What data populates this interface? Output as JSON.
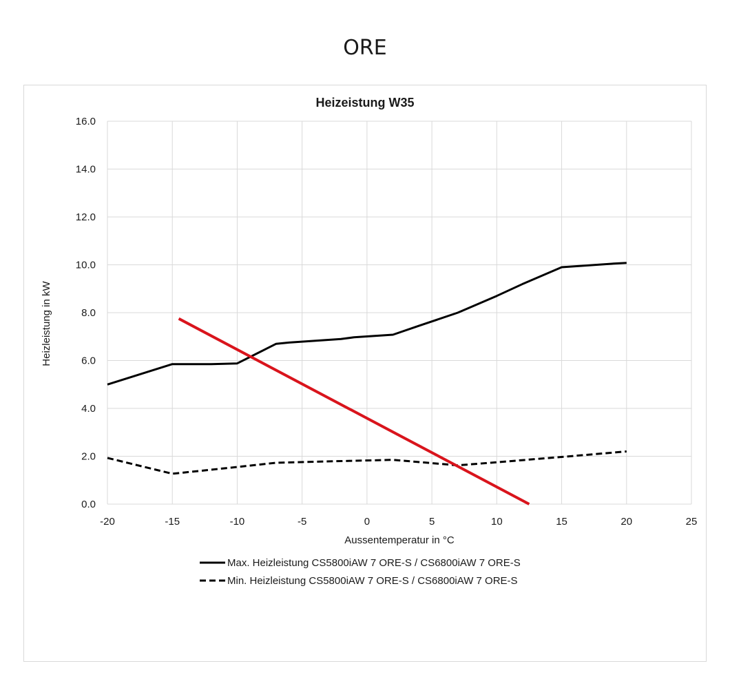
{
  "page_title": "ORE",
  "chart_data": {
    "type": "line",
    "title": "Heizeistung W35",
    "xlabel": "Aussentemperatur in °C",
    "ylabel": "Heizleistung in kW",
    "xlim": [
      -20,
      25
    ],
    "ylim": [
      0,
      16
    ],
    "x_ticks": [
      "-20",
      "-15",
      "-10",
      "-5",
      "0",
      "5",
      "10",
      "15",
      "20",
      "25"
    ],
    "y_ticks": [
      "0.0",
      "2.0",
      "4.0",
      "6.0",
      "8.0",
      "10.0",
      "12.0",
      "14.0",
      "16.0"
    ],
    "grid": true,
    "legend_position": "bottom",
    "series": [
      {
        "name": "Max. Heizleistung CS5800iAW 7 ORE-S / CS6800iAW 7 ORE-S",
        "style": "solid",
        "color": "#000000",
        "x": [
          -20,
          -15,
          -12,
          -10,
          -7,
          -6,
          -2,
          -1,
          2,
          4,
          7,
          10,
          12,
          15,
          19,
          20
        ],
        "y": [
          5.0,
          5.85,
          5.85,
          5.88,
          6.7,
          6.75,
          6.9,
          6.97,
          7.08,
          7.45,
          8.0,
          8.7,
          9.2,
          9.9,
          10.05,
          10.08
        ]
      },
      {
        "name": "Min. Heizleistung CS5800iAW 7 ORE-S / CS6800iAW 7 ORE-S",
        "style": "dashed",
        "color": "#000000",
        "x": [
          -20,
          -15,
          -10,
          -7,
          -2,
          2,
          7,
          10,
          15,
          20
        ],
        "y": [
          1.93,
          1.27,
          1.55,
          1.73,
          1.8,
          1.85,
          1.62,
          1.75,
          1.97,
          2.2
        ]
      }
    ],
    "annotations": [
      {
        "type": "line",
        "color": "#d9141c",
        "x": [
          -14.5,
          12.5
        ],
        "y": [
          7.75,
          0.0
        ]
      }
    ]
  }
}
